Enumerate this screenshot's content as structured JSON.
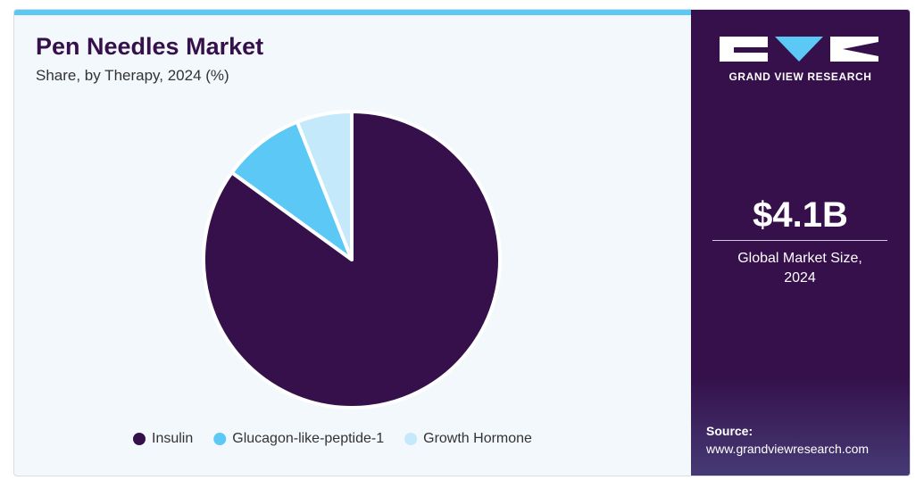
{
  "chart_data": {
    "type": "pie",
    "title": "Pen Needles Market",
    "subtitle": "Share, by Therapy, 2024 (%)",
    "categories": [
      "Insulin",
      "Glucagon-like-peptide-1",
      "Growth Hormone"
    ],
    "values": [
      85,
      9,
      6
    ],
    "colors": [
      "#35104a",
      "#5bc8f5",
      "#c4e9fa"
    ]
  },
  "side_panel": {
    "brand": "GRAND VIEW RESEARCH",
    "market_size": "$4.1B",
    "market_size_label": "Global Market Size, 2024",
    "source_label": "Source:",
    "source_url": "www.grandviewresearch.com"
  }
}
